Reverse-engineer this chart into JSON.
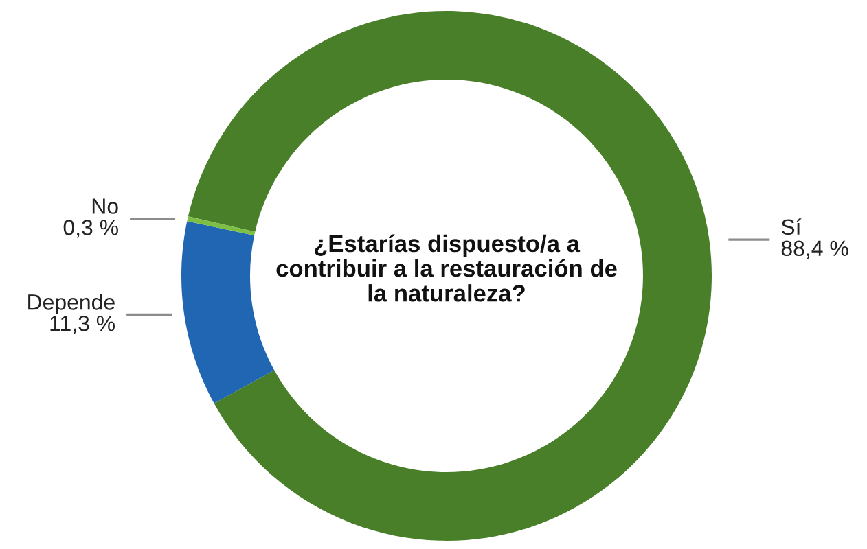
{
  "chart_data": {
    "type": "donut",
    "title": "¿Estarías dispuesto/a a\ncontribuir a la restauración de\nla naturaleza?",
    "categories": [
      "Sí",
      "Depende",
      "No"
    ],
    "values": [
      88.4,
      11.3,
      0.3
    ],
    "colors": [
      "#4a7f29",
      "#2166b3",
      "#7dbf45"
    ],
    "value_labels": [
      "88,4 %",
      "11,3 %",
      "0,3 %"
    ]
  }
}
